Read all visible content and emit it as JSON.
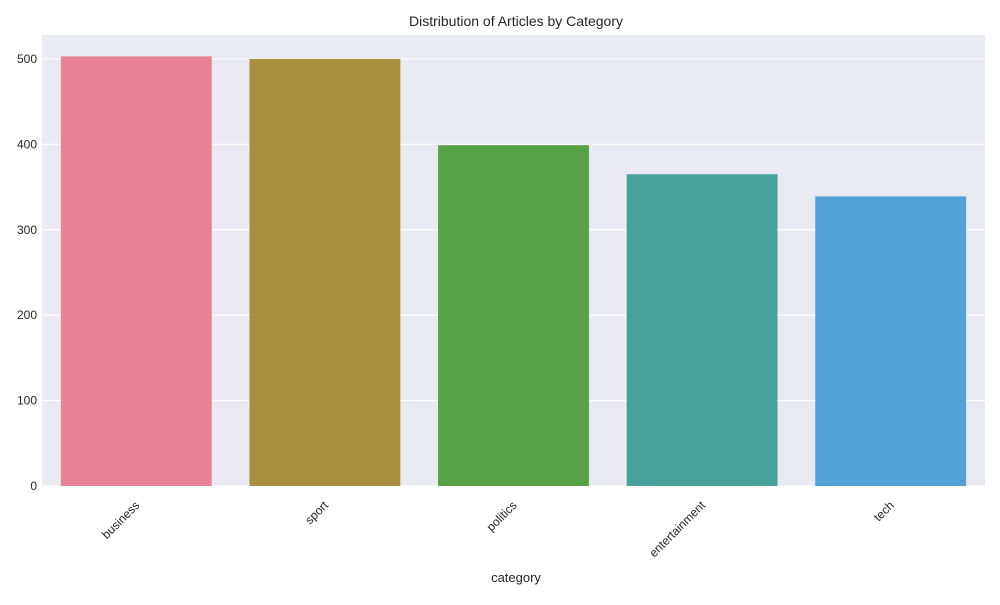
{
  "chart_data": {
    "type": "bar",
    "title": "Distribution of Articles by Category",
    "xlabel": "category",
    "ylabel": "",
    "categories": [
      "business",
      "sport",
      "politics",
      "entertainment",
      "tech"
    ],
    "values": [
      503,
      500,
      399,
      365,
      339
    ],
    "colors": [
      "#e88194",
      "#a98f3f",
      "#57a244",
      "#46a19b",
      "#51a1d7"
    ],
    "ylim": [
      0,
      528
    ],
    "yticks": [
      0,
      100,
      200,
      300,
      400,
      500
    ],
    "grid": true,
    "legend": "none"
  },
  "style": {
    "plot_background": "#eaeaf2",
    "grid_color": "#ffffff"
  }
}
